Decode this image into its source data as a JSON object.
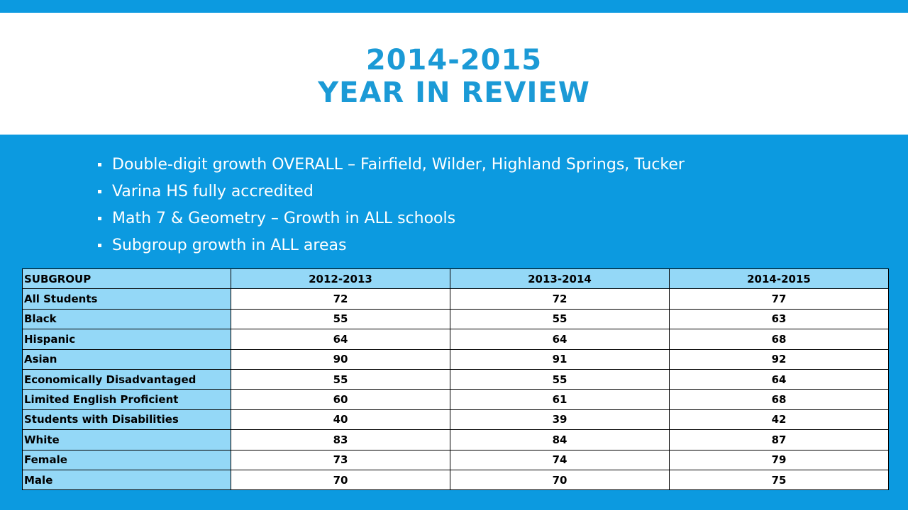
{
  "title": {
    "line1": "2014-2015",
    "line2": "YEAR IN REVIEW"
  },
  "bullets": [
    "Double-digit growth OVERALL – Fairfield, Wilder, Highland Springs, Tucker",
    "Varina HS fully accredited",
    "Math 7 & Geometry – Growth in ALL schools",
    "Subgroup growth in ALL areas"
  ],
  "table": {
    "headers": [
      "SUBGROUP",
      "2012-2013",
      "2013-2014",
      "2014-2015"
    ],
    "rows": [
      [
        "All Students",
        "72",
        "72",
        "77"
      ],
      [
        "Black",
        "55",
        "55",
        "63"
      ],
      [
        "Hispanic",
        "64",
        "64",
        "68"
      ],
      [
        "Asian",
        "90",
        "91",
        "92"
      ],
      [
        "Economically Disadvantaged",
        "55",
        "55",
        "64"
      ],
      [
        "Limited English Proficient",
        "60",
        "61",
        "68"
      ],
      [
        "Students with Disabilities",
        "40",
        "39",
        "42"
      ],
      [
        "White",
        "83",
        "84",
        "87"
      ],
      [
        "Female",
        "73",
        "74",
        "79"
      ],
      [
        "Male",
        "70",
        "70",
        "75"
      ]
    ]
  },
  "colors": {
    "background": "#0c9ae0",
    "title": "#1b9ad6",
    "header_cell": "#94d8f7"
  }
}
